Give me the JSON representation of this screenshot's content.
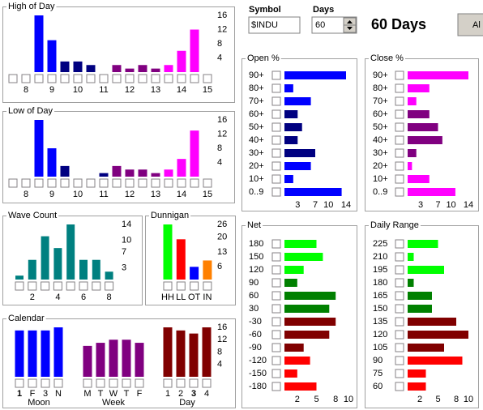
{
  "controls": {
    "symbol_label": "Symbol",
    "symbol": "$INDU",
    "days_label": "Days",
    "days": 60,
    "heading": "60 Days",
    "button": "Al"
  },
  "chart_data": [
    {
      "type": "bar",
      "title": "High of Day",
      "categories": [
        null,
        "8",
        null,
        "9",
        null,
        "10",
        null,
        "11",
        null,
        "12",
        null,
        "13",
        null,
        "14",
        null,
        "15"
      ],
      "values": [
        0,
        0,
        16,
        9,
        3,
        3,
        2,
        0,
        2,
        1,
        2,
        1,
        2,
        6,
        12,
        0
      ],
      "colors": [
        "#0000ff",
        "#0000ff",
        "#0000ff",
        "#0000ff",
        "#000080",
        "#000080",
        "#000080",
        "#000080",
        "#800080",
        "#800080",
        "#800080",
        "#800080",
        "#ff00ff",
        "#ff00ff",
        "#ff00ff",
        "#ff00ff"
      ],
      "ylim": [
        0,
        16
      ],
      "yticks": [
        16,
        12,
        8,
        4
      ]
    },
    {
      "type": "bar",
      "title": "Low of Day",
      "categories": [
        null,
        "8",
        null,
        "9",
        null,
        "10",
        null,
        "11",
        null,
        "12",
        null,
        "13",
        null,
        "14",
        null,
        "15"
      ],
      "values": [
        0,
        0,
        16,
        8,
        3,
        0,
        0,
        1,
        3,
        2,
        2,
        1,
        2,
        5,
        13,
        0
      ],
      "colors": [
        "#0000ff",
        "#0000ff",
        "#0000ff",
        "#0000ff",
        "#000080",
        "#000080",
        "#000080",
        "#000080",
        "#800080",
        "#800080",
        "#800080",
        "#800080",
        "#ff00ff",
        "#ff00ff",
        "#ff00ff",
        "#ff00ff"
      ],
      "ylim": [
        0,
        16
      ],
      "yticks": [
        16,
        12,
        8,
        4
      ]
    },
    {
      "type": "bar",
      "title": "Wave Count",
      "categories": [
        null,
        "2",
        null,
        "4",
        null,
        "6",
        null,
        "8"
      ],
      "values": [
        1,
        5,
        11,
        8,
        14,
        5,
        5,
        2
      ],
      "color": "#008080",
      "ylim": [
        0,
        14
      ],
      "yticks": [
        14,
        10,
        7,
        3
      ]
    },
    {
      "type": "bar",
      "title": "Dunnigan",
      "categories": [
        "HH",
        "LL",
        "OT",
        "IN"
      ],
      "values": [
        26,
        19,
        6,
        9
      ],
      "colors": [
        "#00ff00",
        "#ff0000",
        "#0000ff",
        "#ff8000"
      ],
      "ylim": [
        0,
        26
      ],
      "yticks": [
        26,
        20,
        13,
        6
      ]
    },
    {
      "type": "groupbar",
      "title": "Calendar",
      "groups": [
        {
          "name": "Moon",
          "categories": [
            "1",
            "F",
            "3",
            "N"
          ],
          "values": [
            15,
            15,
            15,
            16
          ],
          "color": "#0000ff",
          "highlight": 0
        },
        {
          "name": "Week",
          "categories": [
            "M",
            "T",
            "W",
            "T",
            "F"
          ],
          "values": [
            10,
            11,
            12,
            12,
            11
          ],
          "color": "#800080"
        },
        {
          "name": "Day",
          "categories": [
            "1",
            "2",
            "3",
            "4"
          ],
          "values": [
            16,
            15,
            14,
            16
          ],
          "color": "#800000",
          "highlight": 2
        }
      ],
      "ylim": [
        0,
        16
      ],
      "yticks": [
        16,
        12,
        8,
        4
      ]
    },
    {
      "type": "barh",
      "title": "Open  %",
      "categories": [
        "90+",
        "80+",
        "70+",
        "60+",
        "50+",
        "40+",
        "30+",
        "20+",
        "10+",
        "0..9"
      ],
      "values": [
        14,
        2,
        6,
        3,
        4,
        3,
        7,
        6,
        2,
        13
      ],
      "colors": [
        "#0000ff",
        "#0000ff",
        "#0000ff",
        "#000080",
        "#000080",
        "#000080",
        "#000080",
        "#0000ff",
        "#0000ff",
        "#0000ff"
      ],
      "xlim": [
        0,
        14
      ],
      "xticks": [
        3,
        7,
        10,
        14
      ]
    },
    {
      "type": "barh",
      "title": "Close  %",
      "categories": [
        "90+",
        "80+",
        "70+",
        "60+",
        "50+",
        "40+",
        "30+",
        "20+",
        "10+",
        "0..9"
      ],
      "values": [
        14,
        5,
        2,
        5,
        7,
        8,
        2,
        1,
        5,
        11
      ],
      "colors": [
        "#ff00ff",
        "#ff00ff",
        "#ff00ff",
        "#800080",
        "#800080",
        "#800080",
        "#800080",
        "#ff00ff",
        "#ff00ff",
        "#ff00ff"
      ],
      "xlim": [
        0,
        14
      ],
      "xticks": [
        3,
        7,
        10,
        14
      ]
    },
    {
      "type": "barh",
      "title": "Net",
      "categories": [
        "180",
        "150",
        "120",
        "90",
        "60",
        "30",
        "-30",
        "-60",
        "-90",
        "-120",
        "-150",
        "-180"
      ],
      "values": [
        5,
        6,
        3,
        2,
        8,
        7,
        8,
        7,
        3,
        4,
        2,
        5
      ],
      "colors": [
        "#00ff00",
        "#00ff00",
        "#00ff00",
        "#008000",
        "#008000",
        "#008000",
        "#800000",
        "#800000",
        "#800000",
        "#ff0000",
        "#ff0000",
        "#ff0000"
      ],
      "xlim": [
        0,
        10
      ],
      "xticks": [
        2,
        5,
        8,
        10
      ]
    },
    {
      "type": "barh",
      "title": "Daily Range",
      "categories": [
        "225",
        "210",
        "195",
        "180",
        "165",
        "150",
        "135",
        "120",
        "105",
        "90",
        "75",
        "60"
      ],
      "values": [
        5,
        1,
        6,
        1,
        4,
        4,
        8,
        10,
        6,
        9,
        3,
        3
      ],
      "colors": [
        "#00ff00",
        "#00ff00",
        "#00ff00",
        "#008000",
        "#008000",
        "#008000",
        "#800000",
        "#800000",
        "#800000",
        "#ff0000",
        "#ff0000",
        "#ff0000"
      ],
      "xlim": [
        0,
        10
      ],
      "xticks": [
        2,
        5,
        8,
        10
      ]
    }
  ]
}
